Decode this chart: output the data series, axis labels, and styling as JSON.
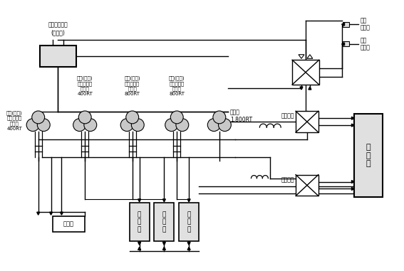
{
  "bg_color": "#ffffff",
  "line_color": "#000000",
  "gray_fill": "#c8c8c8",
  "light_gray": "#e0e0e0",
  "labels": {
    "okwoi": "옥외열교환기\n(가열탑)",
    "left_pump": "해수(공기)\n열원열회수\n열펌프\n400RT",
    "pump1": "해수(공기)\n열원열회수\n열펌프\n400RT",
    "pump2": "해수(공기)\n열원열회수\n열펌프\n800RT",
    "pump3": "해수(공기)\n열원열회수\n열펌프\n800RT",
    "chiller": "냉동기\n1,800RT",
    "naengsu": "냉수조",
    "onsu": "온\n수\n조",
    "hex1": "열교환기",
    "hex2": "열교환기",
    "demand": "수\n요\n가",
    "bada_su": "바다\n취수구",
    "bada_bang": "바다\n방수구"
  }
}
